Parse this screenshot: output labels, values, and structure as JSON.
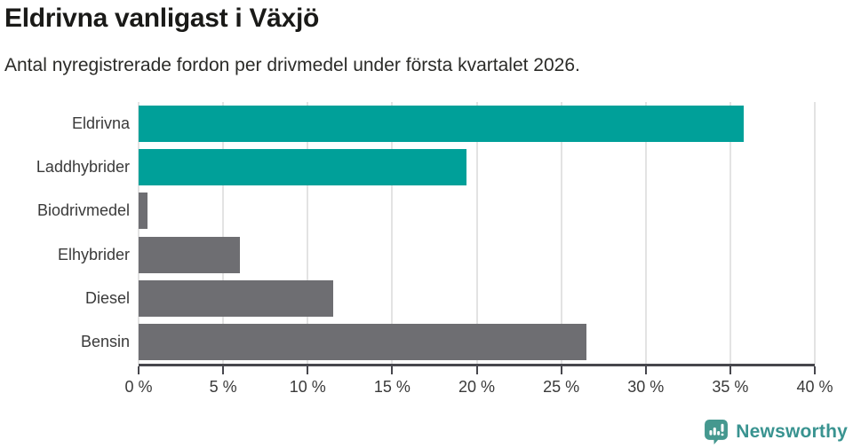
{
  "header": {
    "title": "Eldrivna vanligast i Växjö",
    "subtitle": "Antal nyregistrerade fordon per drivmedel under första kvartalet 2026."
  },
  "chart_data": {
    "type": "bar",
    "orientation": "horizontal",
    "title": "Eldrivna vanligast i Växjö",
    "xlabel": "",
    "ylabel": "",
    "categories": [
      "Eldrivna",
      "Laddhybrider",
      "Biodrivmedel",
      "Elhybrider",
      "Diesel",
      "Bensin"
    ],
    "values": [
      35.8,
      19.4,
      0.5,
      6.0,
      11.5,
      26.5
    ],
    "bar_colors": [
      "#00a099",
      "#00a099",
      "#6e6e72",
      "#6e6e72",
      "#6e6e72",
      "#6e6e72"
    ],
    "highlight_color": "#00a099",
    "default_color": "#6e6e72",
    "xlim": [
      0,
      40
    ],
    "x_tick_step": 5,
    "x_tick_labels": [
      "0 %",
      "5 %",
      "10 %",
      "15 %",
      "20 %",
      "25 %",
      "30 %",
      "35 %",
      "40 %"
    ],
    "grid": "vertical",
    "gridline_color": "#e3e3e3",
    "axis_color": "#47474d",
    "legend": "none"
  },
  "footer": {
    "brand": "Newsworthy",
    "brand_color": "#399390",
    "logo_icon_color": "#45988f",
    "logo_icon": "bar-chart-speech-bubble-icon"
  }
}
